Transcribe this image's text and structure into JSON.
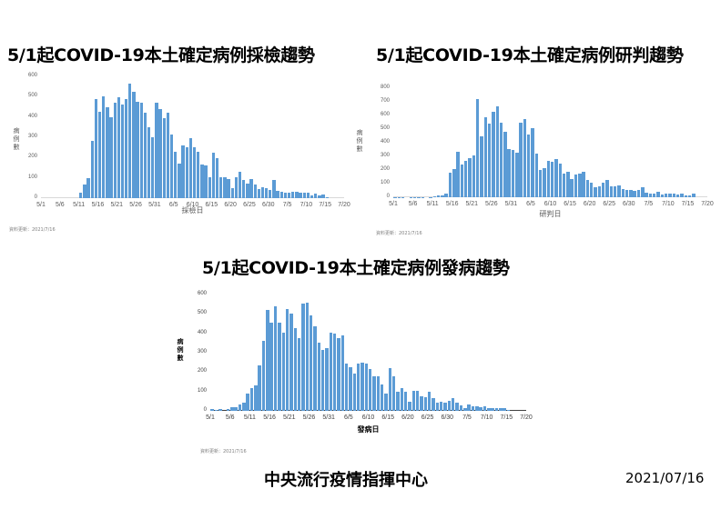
{
  "footer": {
    "org": "中央流行疫情指揮中心",
    "date": "2021/07/16"
  },
  "colors": {
    "bar": "#5b9bd5"
  },
  "chart_data": [
    {
      "type": "bar",
      "title": "5/1起COVID-19本土確定病例採檢趨勢",
      "xlabel": "採檢日",
      "ylabel": "病例數",
      "ylim": [
        0,
        600
      ],
      "yticks": [
        "0",
        "100",
        "200",
        "300",
        "400",
        "500",
        "600"
      ],
      "xticks": [
        "5/1",
        "5/6",
        "5/11",
        "5/16",
        "5/21",
        "5/26",
        "5/31",
        "6/5",
        "6/10",
        "6/15",
        "6/20",
        "6/25",
        "6/30",
        "7/5",
        "7/10",
        "7/15",
        "7/20"
      ],
      "source": "資料更新：2021/7/16",
      "grid": false,
      "start_date": "5/1",
      "values": [
        0,
        0,
        0,
        0,
        0,
        0,
        0,
        0,
        0,
        0,
        25,
        65,
        100,
        280,
        490,
        425,
        500,
        450,
        400,
        470,
        495,
        460,
        490,
        565,
        525,
        475,
        470,
        420,
        350,
        300,
        470,
        440,
        395,
        420,
        315,
        230,
        170,
        260,
        250,
        295,
        250,
        230,
        165,
        160,
        105,
        225,
        195,
        105,
        105,
        95,
        50,
        105,
        130,
        90,
        70,
        95,
        65,
        45,
        55,
        50,
        40,
        90,
        35,
        30,
        28,
        28,
        30,
        30,
        25,
        25,
        28,
        12,
        22,
        15,
        20,
        5
      ]
    },
    {
      "type": "bar",
      "title": "5/1起COVID-19本土確定病例研判趨勢",
      "xlabel": "研判日",
      "ylabel": "病例數",
      "ylim": [
        0,
        800
      ],
      "yticks": [
        "0",
        "100",
        "200",
        "300",
        "400",
        "500",
        "600",
        "700",
        "800"
      ],
      "xticks": [
        "5/1",
        "5/6",
        "5/11",
        "5/16",
        "5/21",
        "5/26",
        "5/31",
        "6/5",
        "6/10",
        "6/15",
        "6/20",
        "6/25",
        "6/30",
        "7/5",
        "7/10",
        "7/15",
        "7/20"
      ],
      "source": "資料更新：2021/7/16",
      "grid": false,
      "start_date": "5/1",
      "values": [
        3,
        2,
        1,
        0,
        1,
        2,
        1,
        3,
        0,
        2,
        6,
        15,
        13,
        25,
        180,
        205,
        335,
        240,
        265,
        285,
        310,
        720,
        450,
        590,
        540,
        630,
        665,
        550,
        480,
        355,
        345,
        330,
        545,
        575,
        460,
        505,
        320,
        200,
        215,
        270,
        260,
        280,
        250,
        175,
        185,
        135,
        165,
        175,
        185,
        125,
        105,
        75,
        78,
        105,
        130,
        78,
        80,
        88,
        60,
        55,
        55,
        50,
        55,
        75,
        35,
        28,
        25,
        40,
        20,
        30,
        30,
        28,
        20,
        30,
        15,
        12,
        30
      ]
    },
    {
      "type": "bar",
      "title": "5/1起COVID-19本土確定病例發病趨勢",
      "xlabel": "發病日",
      "ylabel": "病例數",
      "ylim": [
        0,
        600
      ],
      "yticks": [
        "0",
        "100",
        "200",
        "300",
        "400",
        "500",
        "600"
      ],
      "xticks": [
        "5/1",
        "5/6",
        "5/11",
        "5/16",
        "5/21",
        "5/26",
        "5/31",
        "6/5",
        "6/10",
        "6/15",
        "6/20",
        "6/25",
        "6/30",
        "7/5",
        "7/10",
        "7/15",
        "7/20"
      ],
      "source": "資料更新：2021/7/16",
      "grid": false,
      "start_date": "5/1",
      "values": [
        10,
        5,
        8,
        0,
        8,
        18,
        20,
        35,
        40,
        90,
        115,
        130,
        235,
        360,
        520,
        455,
        540,
        455,
        405,
        525,
        500,
        425,
        375,
        555,
        560,
        490,
        435,
        350,
        315,
        325,
        405,
        400,
        375,
        390,
        245,
        225,
        190,
        245,
        250,
        245,
        215,
        180,
        180,
        135,
        90,
        220,
        180,
        100,
        115,
        100,
        45,
        105,
        105,
        75,
        70,
        100,
        65,
        40,
        48,
        40,
        50,
        65,
        40,
        28,
        12,
        32,
        25,
        25,
        20,
        22,
        15,
        12,
        12,
        12,
        15,
        5
      ]
    }
  ]
}
